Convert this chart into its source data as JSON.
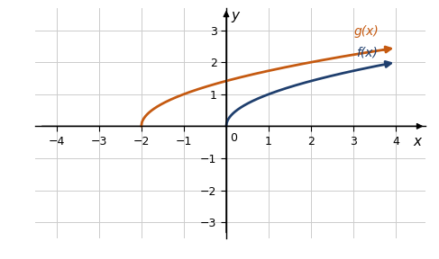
{
  "title": "",
  "xlabel": "x",
  "ylabel": "y",
  "xlim": [
    -4.5,
    4.7
  ],
  "ylim": [
    -3.5,
    3.7
  ],
  "xticks": [
    -4,
    -3,
    -2,
    -1,
    1,
    2,
    3,
    4
  ],
  "yticks": [
    -3,
    -2,
    -1,
    1,
    2,
    3
  ],
  "fx_color": "#1f3f6e",
  "gx_color": "#c55a11",
  "fx_label": "f(x)",
  "gx_label": "g(x)",
  "fx_start": 0,
  "fx_end": 4,
  "gx_start": -2,
  "gx_end": 4,
  "background_color": "#ffffff",
  "grid_color": "#cccccc",
  "figsize": [
    4.87,
    2.88
  ],
  "dpi": 100
}
